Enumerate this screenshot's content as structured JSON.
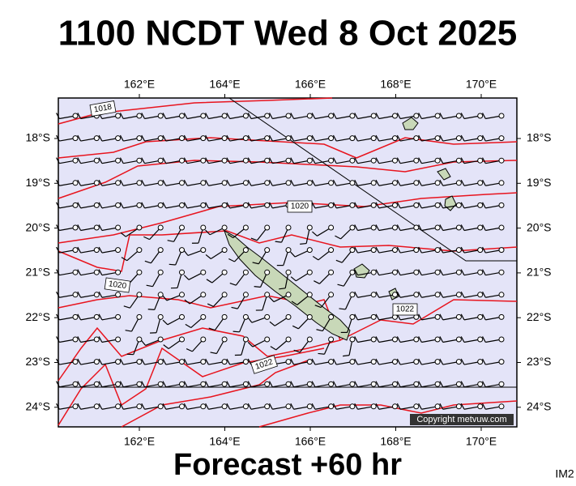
{
  "title": "1100 NCDT Wed 8 Oct 2025",
  "map": {
    "lon_labels": [
      "162°E",
      "164°E",
      "166°E",
      "168°E",
      "170°E"
    ],
    "lat_labels": [
      "18°S",
      "19°S",
      "20°S",
      "21°S",
      "22°S",
      "23°S",
      "24°S"
    ],
    "isobar_labels": [
      "1018",
      "1020",
      "1020",
      "1022",
      "1022"
    ],
    "copyright": "Copyright metvuw.com"
  },
  "footer": "Forecast +60 hr",
  "corner": "IM2"
}
